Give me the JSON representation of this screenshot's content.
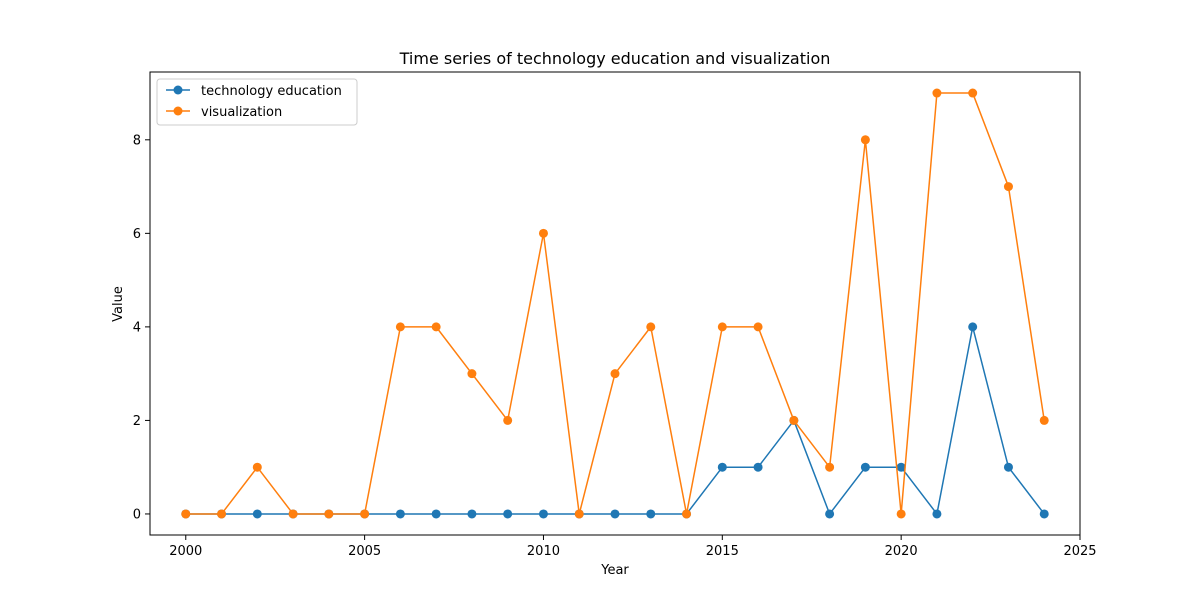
{
  "chart_data": {
    "type": "line",
    "title": "Time series of technology education and visualization",
    "xlabel": "Year",
    "ylabel": "Value",
    "xlim": [
      1999,
      2025
    ],
    "ylim": [
      -0.45,
      9.45
    ],
    "xticks": [
      2000,
      2005,
      2010,
      2015,
      2020,
      2025
    ],
    "yticks": [
      0,
      2,
      4,
      6,
      8
    ],
    "grid": false,
    "legend_position": "upper-left",
    "x": [
      2000,
      2001,
      2002,
      2003,
      2004,
      2005,
      2006,
      2007,
      2008,
      2009,
      2010,
      2011,
      2012,
      2013,
      2014,
      2015,
      2016,
      2017,
      2018,
      2019,
      2020,
      2021,
      2022,
      2023,
      2024
    ],
    "series": [
      {
        "name": "technology education",
        "color": "#1f77b4",
        "values": [
          0,
          0,
          0,
          0,
          0,
          0,
          0,
          0,
          0,
          0,
          0,
          0,
          0,
          0,
          0,
          1,
          1,
          2,
          0,
          1,
          1,
          0,
          4,
          1,
          0
        ]
      },
      {
        "name": "visualization",
        "color": "#ff7f0e",
        "values": [
          0,
          0,
          1,
          0,
          0,
          0,
          4,
          4,
          3,
          2,
          6,
          0,
          3,
          4,
          0,
          4,
          4,
          2,
          1,
          8,
          0,
          9,
          9,
          7,
          2
        ]
      }
    ]
  }
}
